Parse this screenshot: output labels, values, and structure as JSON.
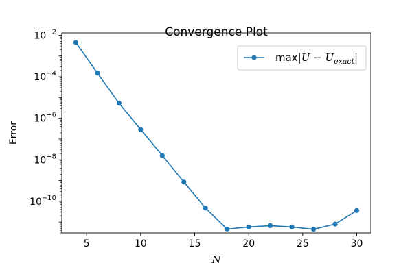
{
  "chart_data": {
    "type": "line",
    "title": "Convergence Plot",
    "xlabel": "N",
    "ylabel": "Error",
    "x_scale": "linear",
    "y_scale": "log",
    "xlim": [
      2.7,
      31.3
    ],
    "ylim": [
      3e-12,
      0.013
    ],
    "x_ticks": [
      {
        "value": 5,
        "label": "5"
      },
      {
        "value": 10,
        "label": "10"
      },
      {
        "value": 15,
        "label": "15"
      },
      {
        "value": 20,
        "label": "20"
      },
      {
        "value": 25,
        "label": "25"
      },
      {
        "value": 30,
        "label": "30"
      }
    ],
    "y_ticks": [
      {
        "value": 0.01,
        "base": "10",
        "exp": "−2"
      },
      {
        "value": 0.0001,
        "base": "10",
        "exp": "−4"
      },
      {
        "value": 1e-06,
        "base": "10",
        "exp": "−6"
      },
      {
        "value": 1e-08,
        "base": "10",
        "exp": "−8"
      },
      {
        "value": 1e-10,
        "base": "10",
        "exp": "−10"
      }
    ],
    "grid": false,
    "legend": {
      "placement": "top-right",
      "prefix": "max|",
      "var": "U",
      "minus": " − ",
      "sub": "exact",
      "suffix": "|"
    },
    "series": [
      {
        "name": "max|U − U_exact|",
        "color": "#1f77b4",
        "marker": "circle",
        "x": [
          4,
          6,
          8,
          10,
          12,
          14,
          16,
          18,
          20,
          22,
          24,
          26,
          28,
          30
        ],
        "y": [
          0.0045,
          0.00015,
          5.3e-06,
          2.9e-07,
          1.6e-08,
          8.5e-10,
          4.7e-11,
          4.6e-12,
          5.8e-12,
          6.7e-12,
          5.8e-12,
          4.5e-12,
          8e-12,
          3.6e-11
        ]
      }
    ]
  }
}
